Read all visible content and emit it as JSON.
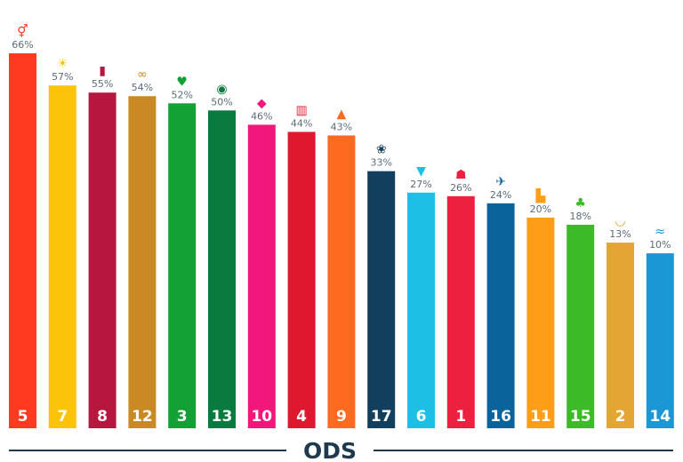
{
  "chart_data": {
    "type": "bar",
    "title": "",
    "xlabel": "ODS",
    "ylabel": "",
    "categories": [
      "5",
      "7",
      "8",
      "12",
      "3",
      "13",
      "10",
      "4",
      "9",
      "17",
      "6",
      "1",
      "16",
      "11",
      "15",
      "2",
      "14"
    ],
    "values": [
      66,
      57,
      55,
      54,
      52,
      50,
      46,
      44,
      43,
      33,
      27,
      26,
      24,
      20,
      18,
      13,
      10
    ],
    "value_labels": [
      "66%",
      "57%",
      "55%",
      "54%",
      "52%",
      "50%",
      "46%",
      "44%",
      "43%",
      "33%",
      "27%",
      "26%",
      "24%",
      "20%",
      "18%",
      "13%",
      "10%"
    ],
    "colors": [
      "#FF3A21",
      "#FCC30B",
      "#B5173F",
      "#C98A25",
      "#13A035",
      "#0B7A3E",
      "#F2177A",
      "#E0182F",
      "#FD6A20",
      "#123F5E",
      "#1EBFE4",
      "#EE2040",
      "#0A639A",
      "#FD9D18",
      "#3CBA27",
      "#E5A533",
      "#1A97D4"
    ],
    "icons": [
      "gender-equality-icon",
      "sun-energy-icon",
      "growth-chart-icon",
      "infinity-icon",
      "heartbeat-icon",
      "eye-earth-icon",
      "equality-arrows-icon",
      "book-icon",
      "industry-blocks-icon",
      "flower-partnership-icon",
      "water-drop-icon",
      "family-icon",
      "dove-icon",
      "city-icon",
      "tree-icon",
      "bowl-icon",
      "fish-icon"
    ],
    "grid": false,
    "legend": "none"
  }
}
